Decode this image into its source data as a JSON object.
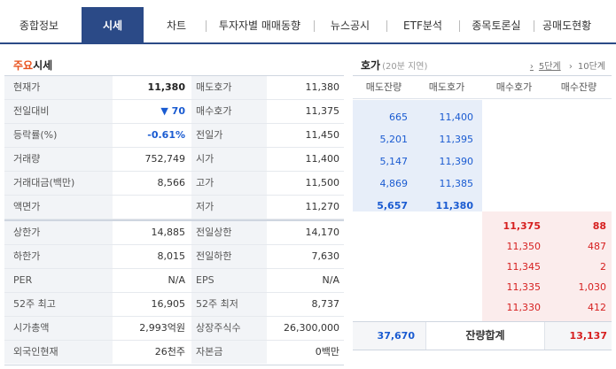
{
  "tabs": [
    {
      "label": "종합정보",
      "active": false
    },
    {
      "label": "시세",
      "active": true
    },
    {
      "label": "차트",
      "active": false
    },
    {
      "label": "투자자별 매매동향",
      "active": false
    },
    {
      "label": "뉴스공시",
      "active": false
    },
    {
      "label": "ETF분석",
      "active": false
    },
    {
      "label": "종목토론실",
      "active": false
    },
    {
      "label": "공매도현황",
      "active": false
    }
  ],
  "main_quote": {
    "title_accent": "주요",
    "title_rest": "시세",
    "rows": [
      {
        "l1": "현재가",
        "v1": "11,380",
        "l2": "매도호가",
        "v2": "11,380"
      },
      {
        "l1": "전일대비",
        "v1": "▼ 70",
        "l2": "매수호가",
        "v2": "11,375"
      },
      {
        "l1": "등락률(%)",
        "v1": "-0.61%",
        "l2": "전일가",
        "v2": "11,450"
      },
      {
        "l1": "거래량",
        "v1": "752,749",
        "l2": "시가",
        "v2": "11,400"
      },
      {
        "l1": "거래대금(백만)",
        "v1": "8,566",
        "l2": "고가",
        "v2": "11,500"
      },
      {
        "l1": "액면가",
        "v1": "",
        "l2": "저가",
        "v2": "11,270"
      },
      {
        "l1": "상한가",
        "v1": "14,885",
        "l2": "전일상한",
        "v2": "14,170"
      },
      {
        "l1": "하한가",
        "v1": "8,015",
        "l2": "전일하한",
        "v2": "7,630"
      },
      {
        "l1": "PER",
        "v1": "N/A",
        "l2": "EPS",
        "v2": "N/A"
      },
      {
        "l1": "52주 최고",
        "v1": "16,905",
        "l2": "52주 최저",
        "v2": "8,737"
      },
      {
        "l1": "시가총액",
        "v1": "2,993억원",
        "l2": "상장주식수",
        "v2": "26,300,000"
      },
      {
        "l1": "외국인현재",
        "v1": "26천주",
        "l2": "자본금",
        "v2": "0백만"
      }
    ]
  },
  "order_book": {
    "title": "호가",
    "subtitle": "(20분 지연)",
    "link_5": "5단계",
    "link_10": "10단계",
    "headers": [
      "매도잔량",
      "매도호가",
      "매수호가",
      "매수잔량"
    ],
    "asks": [
      {
        "qty": "665",
        "price": "11,400"
      },
      {
        "qty": "5,201",
        "price": "11,395"
      },
      {
        "qty": "5,147",
        "price": "11,390"
      },
      {
        "qty": "4,869",
        "price": "11,385"
      },
      {
        "qty": "5,657",
        "price": "11,380"
      }
    ],
    "bids": [
      {
        "price": "11,375",
        "qty": "88"
      },
      {
        "price": "11,350",
        "qty": "487"
      },
      {
        "price": "11,345",
        "qty": "2"
      },
      {
        "price": "11,335",
        "qty": "1,030"
      },
      {
        "price": "11,330",
        "qty": "412"
      }
    ],
    "total_ask": "37,670",
    "total_label": "잔량합계",
    "total_bid": "13,137"
  },
  "colors": {
    "tab_active": "#2b4a87",
    "ask_blue": "#1a5bd1",
    "bid_red": "#d61f1f",
    "title_accent": "#e8501b"
  }
}
